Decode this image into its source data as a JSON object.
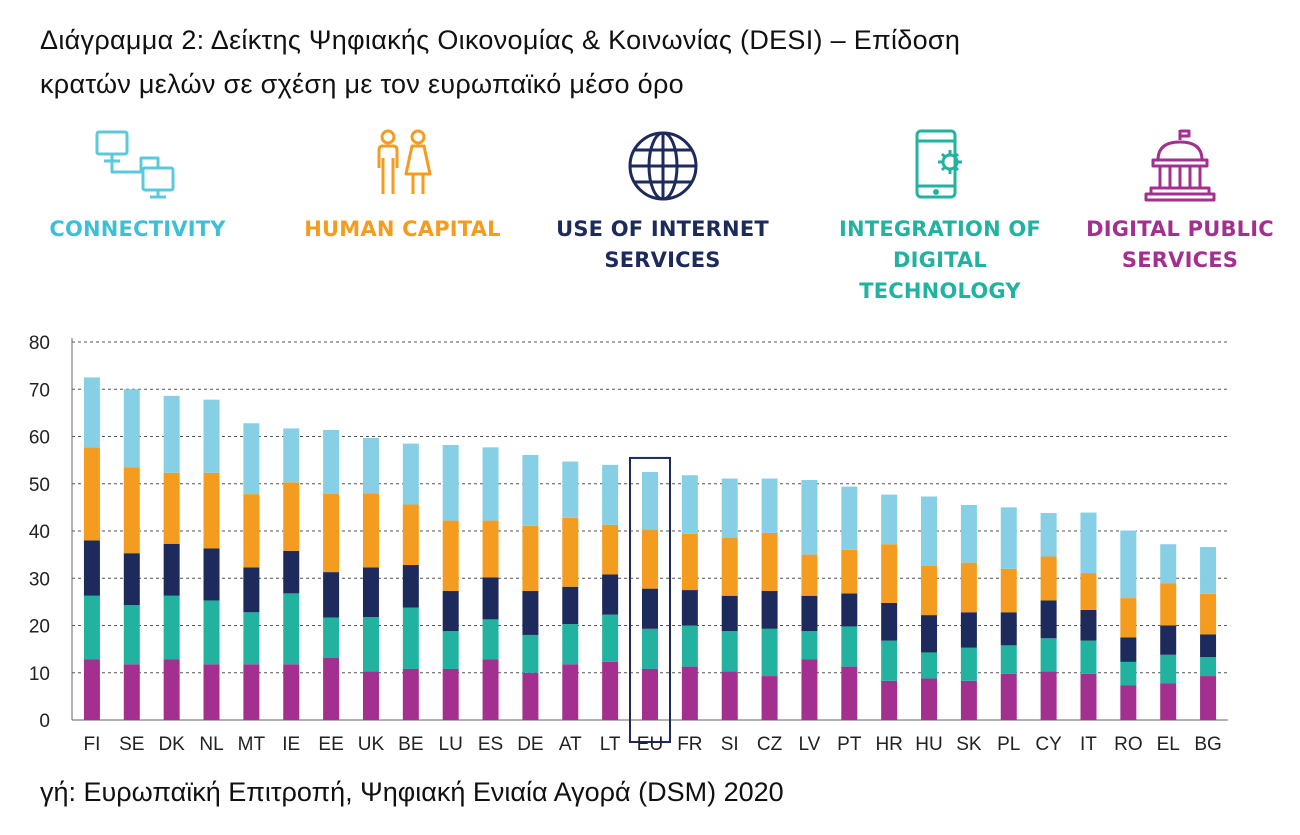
{
  "title": {
    "line1": "Διάγραμμα 2: Δείκτης Ψηφιακής Οικονομίας & Κοινωνίας (DESI) – Επίδοση",
    "line2": "κρατών μελών σε σχέση με τον ευρωπαϊκό μέσο όρο"
  },
  "legend": [
    {
      "label": "CONNECTIVITY",
      "icon": "connected-computers-icon",
      "color": "#5bc8dc"
    },
    {
      "label": "HUMAN CAPITAL",
      "icon": "people-icon",
      "color": "#f39c1f"
    },
    {
      "label": "USE OF INTERNET\nSERVICES",
      "icon": "globe-icon",
      "color": "#1d2a5c"
    },
    {
      "label": "INTEGRATION OF\nDIGITAL TECHNOLOGY",
      "icon": "tablet-gear-icon",
      "color": "#22b2a0"
    },
    {
      "label": "DIGITAL PUBLIC\nSERVICES",
      "icon": "public-building-icon",
      "color": "#a3308f"
    }
  ],
  "source": "γή: Ευρωπαϊκή Επιτροπή, Ψηφιακή Ενιαία Αγορά (DSM) 2020",
  "chart_data": {
    "type": "bar",
    "stacked": true,
    "ylim": [
      0,
      80
    ],
    "yticks": [
      0,
      10,
      20,
      30,
      40,
      50,
      60,
      70,
      80
    ],
    "grid": true,
    "highlight": "EU",
    "categories": [
      "FI",
      "SE",
      "DK",
      "NL",
      "MT",
      "IE",
      "EE",
      "UK",
      "BE",
      "LU",
      "ES",
      "DE",
      "AT",
      "LT",
      "EU",
      "FR",
      "SI",
      "CZ",
      "LV",
      "PT",
      "HR",
      "HU",
      "SK",
      "PL",
      "CY",
      "IT",
      "RO",
      "EL",
      "BG"
    ],
    "series": [
      {
        "name": "DIGITAL PUBLIC SERVICES",
        "color": "#a3308f",
        "values": [
          12.8,
          11.8,
          12.8,
          11.8,
          11.8,
          11.8,
          13.2,
          10.3,
          10.8,
          10.8,
          12.8,
          10.0,
          11.8,
          12.3,
          10.8,
          11.3,
          10.3,
          9.3,
          12.8,
          11.3,
          8.3,
          8.8,
          8.3,
          9.8,
          10.3,
          9.8,
          7.3,
          7.8,
          9.3
        ]
      },
      {
        "name": "INTEGRATION OF DIGITAL TECHNOLOGY",
        "color": "#22b2a0",
        "values": [
          13.5,
          12.5,
          13.5,
          13.5,
          11.0,
          15.0,
          8.5,
          11.5,
          13.0,
          8.0,
          8.5,
          8.0,
          8.5,
          10.0,
          8.5,
          8.7,
          8.5,
          10.0,
          6.0,
          8.5,
          8.5,
          5.5,
          7.0,
          6.0,
          7.0,
          7.0,
          5.0,
          6.0,
          4.0
        ]
      },
      {
        "name": "USE OF INTERNET SERVICES",
        "color": "#1d2a5c",
        "values": [
          11.7,
          11.0,
          11.0,
          11.0,
          9.5,
          9.0,
          9.6,
          10.5,
          9.0,
          8.5,
          8.9,
          9.3,
          7.9,
          8.5,
          8.5,
          7.5,
          7.5,
          8.0,
          7.5,
          7.0,
          8.0,
          7.9,
          7.5,
          7.0,
          8.0,
          6.5,
          5.2,
          6.2,
          4.8
        ]
      },
      {
        "name": "HUMAN CAPITAL",
        "color": "#f39c1f",
        "values": [
          19.7,
          18.2,
          15.0,
          16.0,
          15.5,
          14.5,
          16.6,
          15.7,
          12.8,
          14.9,
          12.0,
          13.8,
          14.6,
          10.5,
          12.5,
          11.9,
          12.3,
          12.3,
          8.7,
          9.2,
          12.4,
          10.4,
          10.5,
          9.2,
          9.3,
          7.8,
          8.3,
          8.9,
          8.6
        ]
      },
      {
        "name": "CONNECTIVITY",
        "color": "#86cfe4",
        "values": [
          14.8,
          16.5,
          16.3,
          15.5,
          15.0,
          11.4,
          13.5,
          11.7,
          12.9,
          16.0,
          15.5,
          15.0,
          11.9,
          12.7,
          12.2,
          12.4,
          12.5,
          11.5,
          15.8,
          13.4,
          10.5,
          14.7,
          12.2,
          13.0,
          9.2,
          12.8,
          14.3,
          8.3,
          9.9
        ]
      }
    ]
  }
}
